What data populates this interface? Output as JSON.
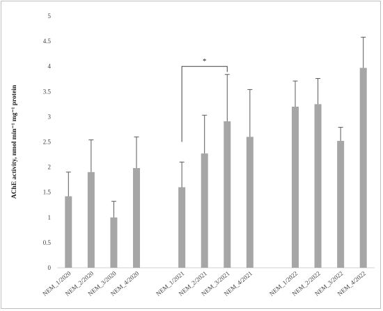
{
  "chart_data": {
    "type": "bar",
    "ylabel": "AChE activity, nmol min⁻¹ mg⁻¹ protein",
    "ylim": [
      0,
      5
    ],
    "yticks": [
      "0",
      "0.5",
      "1",
      "1.5",
      "2",
      "2.5",
      "3",
      "3.5",
      "4",
      "4.5",
      "5"
    ],
    "grid": false,
    "bar_color": "#a6a6a6",
    "error_color": "#595959",
    "groups": [
      {
        "categories": [
          "NEM_1/2020",
          "NEM_2/2020",
          "NEM_3/2020",
          "NEM_4/2020"
        ],
        "values": [
          1.42,
          1.9,
          1.0,
          1.98
        ],
        "errors": [
          0.48,
          0.64,
          0.32,
          0.62
        ]
      },
      {
        "categories": [
          "NEM_1/2021",
          "NEM_2/2021",
          "NEM_3/2021",
          "NEM_4/2021"
        ],
        "values": [
          1.6,
          2.27,
          2.91,
          2.6
        ],
        "errors": [
          0.5,
          0.76,
          0.93,
          0.94
        ]
      },
      {
        "categories": [
          "NEM_1/2022",
          "NEM_2/2022",
          "NEM_3/2022",
          "NEM_4/2022"
        ],
        "values": [
          3.2,
          3.25,
          2.52,
          3.97
        ],
        "errors": [
          0.51,
          0.51,
          0.27,
          0.61
        ]
      }
    ],
    "significance": [
      {
        "from": "NEM_1/2021",
        "to": "NEM_3/2021",
        "level": 4.0,
        "label": "*"
      }
    ]
  }
}
